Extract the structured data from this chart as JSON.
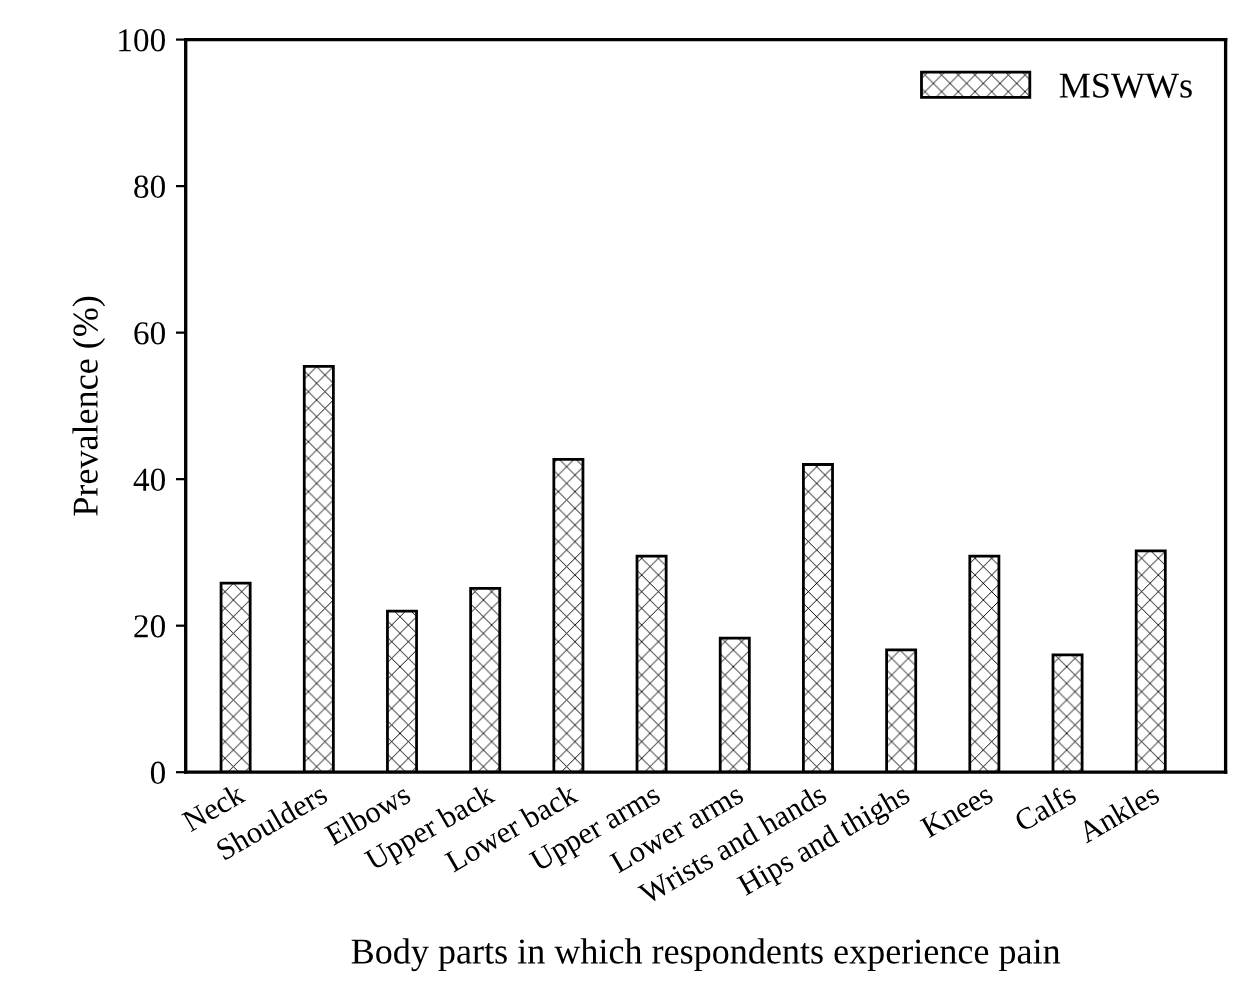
{
  "chart_data": {
    "type": "bar",
    "xlabel": "Body parts in which respondents experience pain",
    "ylabel": "Prevalence (%)",
    "categories": [
      "Neck",
      "Shoulders",
      "Elbows",
      "Upper back",
      "Lower back",
      "Upper arms",
      "Lower arms",
      "Wrists and hands",
      "Hips and thighs",
      "Knees",
      "Calfs",
      "Ankles"
    ],
    "series": [
      {
        "name": "MSWWs",
        "color": "#000000",
        "values": [
          25.8,
          55.4,
          22.0,
          25.1,
          42.7,
          29.5,
          18.3,
          42.0,
          16.7,
          29.5,
          16.0,
          30.2
        ]
      }
    ],
    "ylim": [
      0,
      100
    ],
    "yticks": [
      0,
      20,
      40,
      60,
      80,
      100
    ],
    "grid": false,
    "legend": "top right"
  }
}
